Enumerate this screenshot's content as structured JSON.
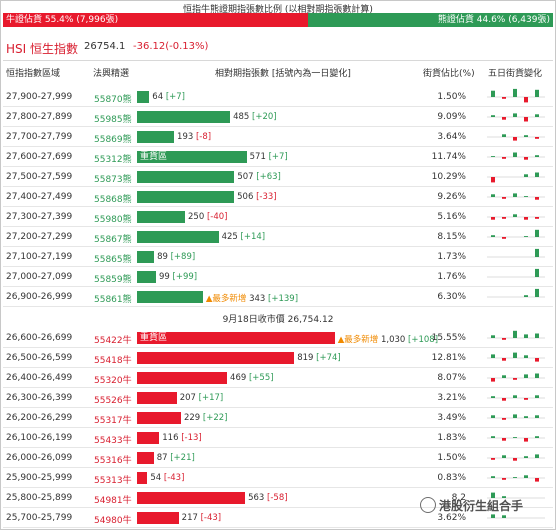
{
  "header": {
    "title": "恒指牛熊證期指張數比例 (以相對期指張數計算)",
    "bull_ratio_label": "牛證佔貨 55.4% (7,996張)",
    "bear_ratio_label": "熊證佔貨 44.6% (6,439張)",
    "bull_pct": 55.4,
    "bear_pct": 44.6,
    "bull_color": "#e8192c",
    "bear_color": "#2e9a56"
  },
  "index": {
    "name": "HSI 恒生指數",
    "value": "26754.1",
    "change": "-36.12(-0.13%)"
  },
  "columns": {
    "range": "恒指指數區域",
    "code": "法興精選",
    "qty": "相對期指張數 [括號內為一日變化]",
    "share": "街貨佔比(%)",
    "trend": "五日街貨變化"
  },
  "separator": "9月18日收市價 26,754.12",
  "new_label": "▲最多新增",
  "heavy_label": "重貨區",
  "bear_rows": [
    {
      "range": "27,900-27,999",
      "code": "55870熊",
      "value": "64",
      "delta": "+7",
      "pct": "1.50%",
      "qty": 64,
      "spark": [
        0.7,
        -0.2,
        0.9,
        -0.6,
        0.8
      ]
    },
    {
      "range": "27,800-27,899",
      "code": "55985熊",
      "value": "485",
      "delta": "+20",
      "pct": "9.09%",
      "qty": 485,
      "spark": [
        0.2,
        -0.3,
        0.4,
        -0.5,
        0.3
      ]
    },
    {
      "range": "27,700-27,799",
      "code": "55869熊",
      "value": "193",
      "delta": "-8",
      "pct": "3.64%",
      "qty": 193,
      "spark": [
        0,
        0.3,
        -0.4,
        0.2,
        -0.2
      ]
    },
    {
      "range": "27,600-27,699",
      "code": "55312熊",
      "value": "571",
      "delta": "+7",
      "pct": "11.74%",
      "qty": 571,
      "heavy": true,
      "spark": [
        0.1,
        -0.2,
        0.5,
        -0.3,
        0.2
      ]
    },
    {
      "range": "27,500-27,599",
      "code": "55873熊",
      "value": "507",
      "delta": "+63",
      "pct": "10.29%",
      "qty": 507,
      "spark": [
        -0.6,
        0,
        0,
        0.3,
        0.5
      ]
    },
    {
      "range": "27,400-27,499",
      "code": "55868熊",
      "value": "506",
      "delta": "-33",
      "pct": "9.26%",
      "qty": 506,
      "spark": [
        0.3,
        -0.2,
        0.4,
        0.1,
        -0.3
      ]
    },
    {
      "range": "27,300-27,399",
      "code": "55980熊",
      "value": "250",
      "delta": "-40",
      "pct": "5.16%",
      "qty": 250,
      "spark": [
        -0.3,
        -0.2,
        0.3,
        -0.3,
        -0.2
      ]
    },
    {
      "range": "27,200-27,299",
      "code": "55867熊",
      "value": "425",
      "delta": "+14",
      "pct": "8.15%",
      "qty": 425,
      "spark": [
        0.2,
        -0.2,
        0,
        0.1,
        0.8
      ]
    },
    {
      "range": "27,100-27,199",
      "code": "55865熊",
      "value": "89",
      "delta": "+89",
      "pct": "1.73%",
      "qty": 89,
      "spark": [
        0,
        0,
        0,
        0,
        0.9
      ]
    },
    {
      "range": "27,000-27,099",
      "code": "55859熊",
      "value": "99",
      "delta": "+99",
      "pct": "1.76%",
      "qty": 99,
      "spark": [
        0,
        0,
        0,
        0,
        0.9
      ]
    },
    {
      "range": "26,900-26,999",
      "code": "55861熊",
      "value": "343",
      "delta": "+139",
      "pct": "6.30%",
      "qty": 343,
      "newest": true,
      "spark": [
        0,
        0,
        0,
        0.2,
        0.9
      ]
    }
  ],
  "bull_rows": [
    {
      "range": "26,600-26,699",
      "code": "55422牛",
      "value": "1,030",
      "delta": "+108",
      "pct": "15.55%",
      "qty": 1030,
      "heavy": true,
      "newest": true,
      "spark": [
        0.3,
        -0.2,
        0.8,
        0.4,
        0.5
      ]
    },
    {
      "range": "26,500-26,599",
      "code": "55418牛",
      "value": "819",
      "delta": "+74",
      "pct": "12.81%",
      "qty": 819,
      "spark": [
        0.4,
        -0.3,
        0.6,
        0.3,
        -0.4
      ]
    },
    {
      "range": "26,400-26,499",
      "code": "55320牛",
      "value": "469",
      "delta": "+55",
      "pct": "8.07%",
      "qty": 469,
      "spark": [
        -0.4,
        0.3,
        -0.2,
        0.4,
        0.5
      ]
    },
    {
      "range": "26,300-26,399",
      "code": "55526牛",
      "value": "207",
      "delta": "+17",
      "pct": "3.21%",
      "qty": 207,
      "spark": [
        0.2,
        -0.3,
        0.3,
        -0.2,
        0.3
      ]
    },
    {
      "range": "26,200-26,299",
      "code": "55317牛",
      "value": "229",
      "delta": "+22",
      "pct": "3.49%",
      "qty": 229,
      "spark": [
        0.3,
        -0.2,
        0.4,
        0.2,
        0.3
      ]
    },
    {
      "range": "26,100-26,199",
      "code": "55433牛",
      "value": "116",
      "delta": "-13",
      "pct": "1.83%",
      "qty": 116,
      "spark": [
        0.2,
        -0.3,
        0.1,
        -0.4,
        0.2
      ]
    },
    {
      "range": "26,000-26,099",
      "code": "55316牛",
      "value": "87",
      "delta": "+21",
      "pct": "1.50%",
      "qty": 87,
      "spark": [
        -0.2,
        0.3,
        -0.3,
        0.2,
        0.4
      ]
    },
    {
      "range": "25,900-25,999",
      "code": "55313牛",
      "value": "54",
      "delta": "-43",
      "pct": "0.83%",
      "qty": 54,
      "spark": [
        0.2,
        -0.2,
        0.1,
        0.3,
        -0.4
      ]
    },
    {
      "range": "25,800-25,899",
      "code": "54981牛",
      "value": "563",
      "delta": "-58",
      "pct": "8.2",
      "qty": 563,
      "spark": [
        0.6,
        0.2,
        0,
        0,
        0
      ]
    },
    {
      "range": "25,700-25,799",
      "code": "54980牛",
      "value": "217",
      "delta": "-43",
      "pct": "3.62%",
      "qty": 217,
      "spark": [
        0.4,
        0.3,
        0,
        0,
        0
      ]
    }
  ],
  "watermark": "港股衍生組合手"
}
